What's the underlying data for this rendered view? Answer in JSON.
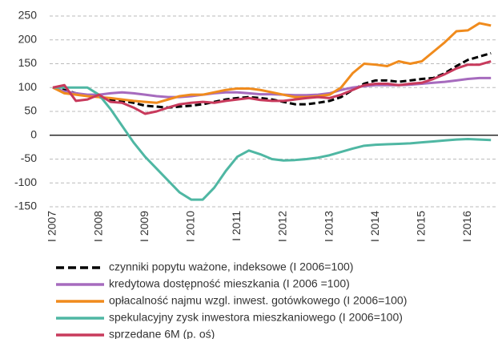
{
  "chart_data": {
    "type": "line",
    "categories": [
      "I 2007",
      null,
      null,
      null,
      "I 2008",
      null,
      null,
      null,
      "I 2009",
      null,
      null,
      null,
      "I 2010",
      null,
      null,
      null,
      "I 2011",
      null,
      null,
      null,
      "I 2012",
      null,
      null,
      null,
      "I 2013",
      null,
      null,
      null,
      "I 2014",
      null,
      null,
      null,
      "I 2015",
      null,
      null,
      null,
      "I 2016",
      null,
      null
    ],
    "ylim": [
      -150,
      250
    ],
    "yticks": [
      -150,
      -100,
      -50,
      0,
      50,
      100,
      150,
      200,
      250
    ],
    "grid": true,
    "series": [
      {
        "name": "czynniki popytu ważone, indeksowe (I 2006=100)",
        "color": "#000000",
        "dashed": true,
        "values": [
          100,
          95,
          88,
          84,
          80,
          75,
          72,
          68,
          62,
          60,
          58,
          60,
          62,
          65,
          70,
          75,
          78,
          80,
          78,
          75,
          70,
          65,
          65,
          68,
          72,
          80,
          95,
          108,
          115,
          115,
          112,
          115,
          118,
          120,
          130,
          145,
          158,
          165,
          172
        ]
      },
      {
        "name": "kredytowa dostępność mieszkania (I 2006 =100)",
        "color": "#a66bbe",
        "values": [
          100,
          92,
          88,
          85,
          85,
          88,
          90,
          88,
          85,
          82,
          80,
          80,
          82,
          85,
          88,
          90,
          90,
          88,
          86,
          86,
          85,
          84,
          84,
          85,
          88,
          95,
          100,
          103,
          105,
          105,
          105,
          106,
          108,
          110,
          112,
          115,
          118,
          120,
          120
        ]
      },
      {
        "name": "opłacalność najmu wzgl. inwest. gotówkowego (I 2006=100)",
        "color": "#f08b1d",
        "values": [
          100,
          88,
          85,
          82,
          80,
          78,
          75,
          72,
          70,
          68,
          75,
          82,
          85,
          85,
          90,
          95,
          98,
          98,
          95,
          90,
          85,
          80,
          80,
          82,
          85,
          100,
          130,
          150,
          148,
          145,
          155,
          150,
          155,
          175,
          195,
          218,
          220,
          235,
          230
        ]
      },
      {
        "name": "spekulacyjny zysk inwestora mieszkaniowego (I 2006=100)",
        "color": "#4fb7a3",
        "values": [
          100,
          100,
          100,
          100,
          85,
          55,
          20,
          -15,
          -45,
          -70,
          -95,
          -120,
          -135,
          -135,
          -110,
          -75,
          -45,
          -32,
          -40,
          -50,
          -53,
          -52,
          -50,
          -47,
          -42,
          -35,
          -28,
          -22,
          -20,
          -19,
          -18,
          -17,
          -15,
          -13,
          -11,
          -9,
          -8,
          -9,
          -10
        ]
      },
      {
        "name": "sprzedane 6M (p. oś)",
        "color": "#c83a5c",
        "values": [
          100,
          105,
          72,
          75,
          85,
          70,
          68,
          58,
          45,
          50,
          58,
          65,
          68,
          70,
          68,
          72,
          75,
          78,
          74,
          72,
          72,
          75,
          78,
          80,
          78,
          85,
          95,
          105,
          108,
          108,
          105,
          108,
          110,
          118,
          128,
          140,
          148,
          148,
          155
        ]
      }
    ]
  }
}
